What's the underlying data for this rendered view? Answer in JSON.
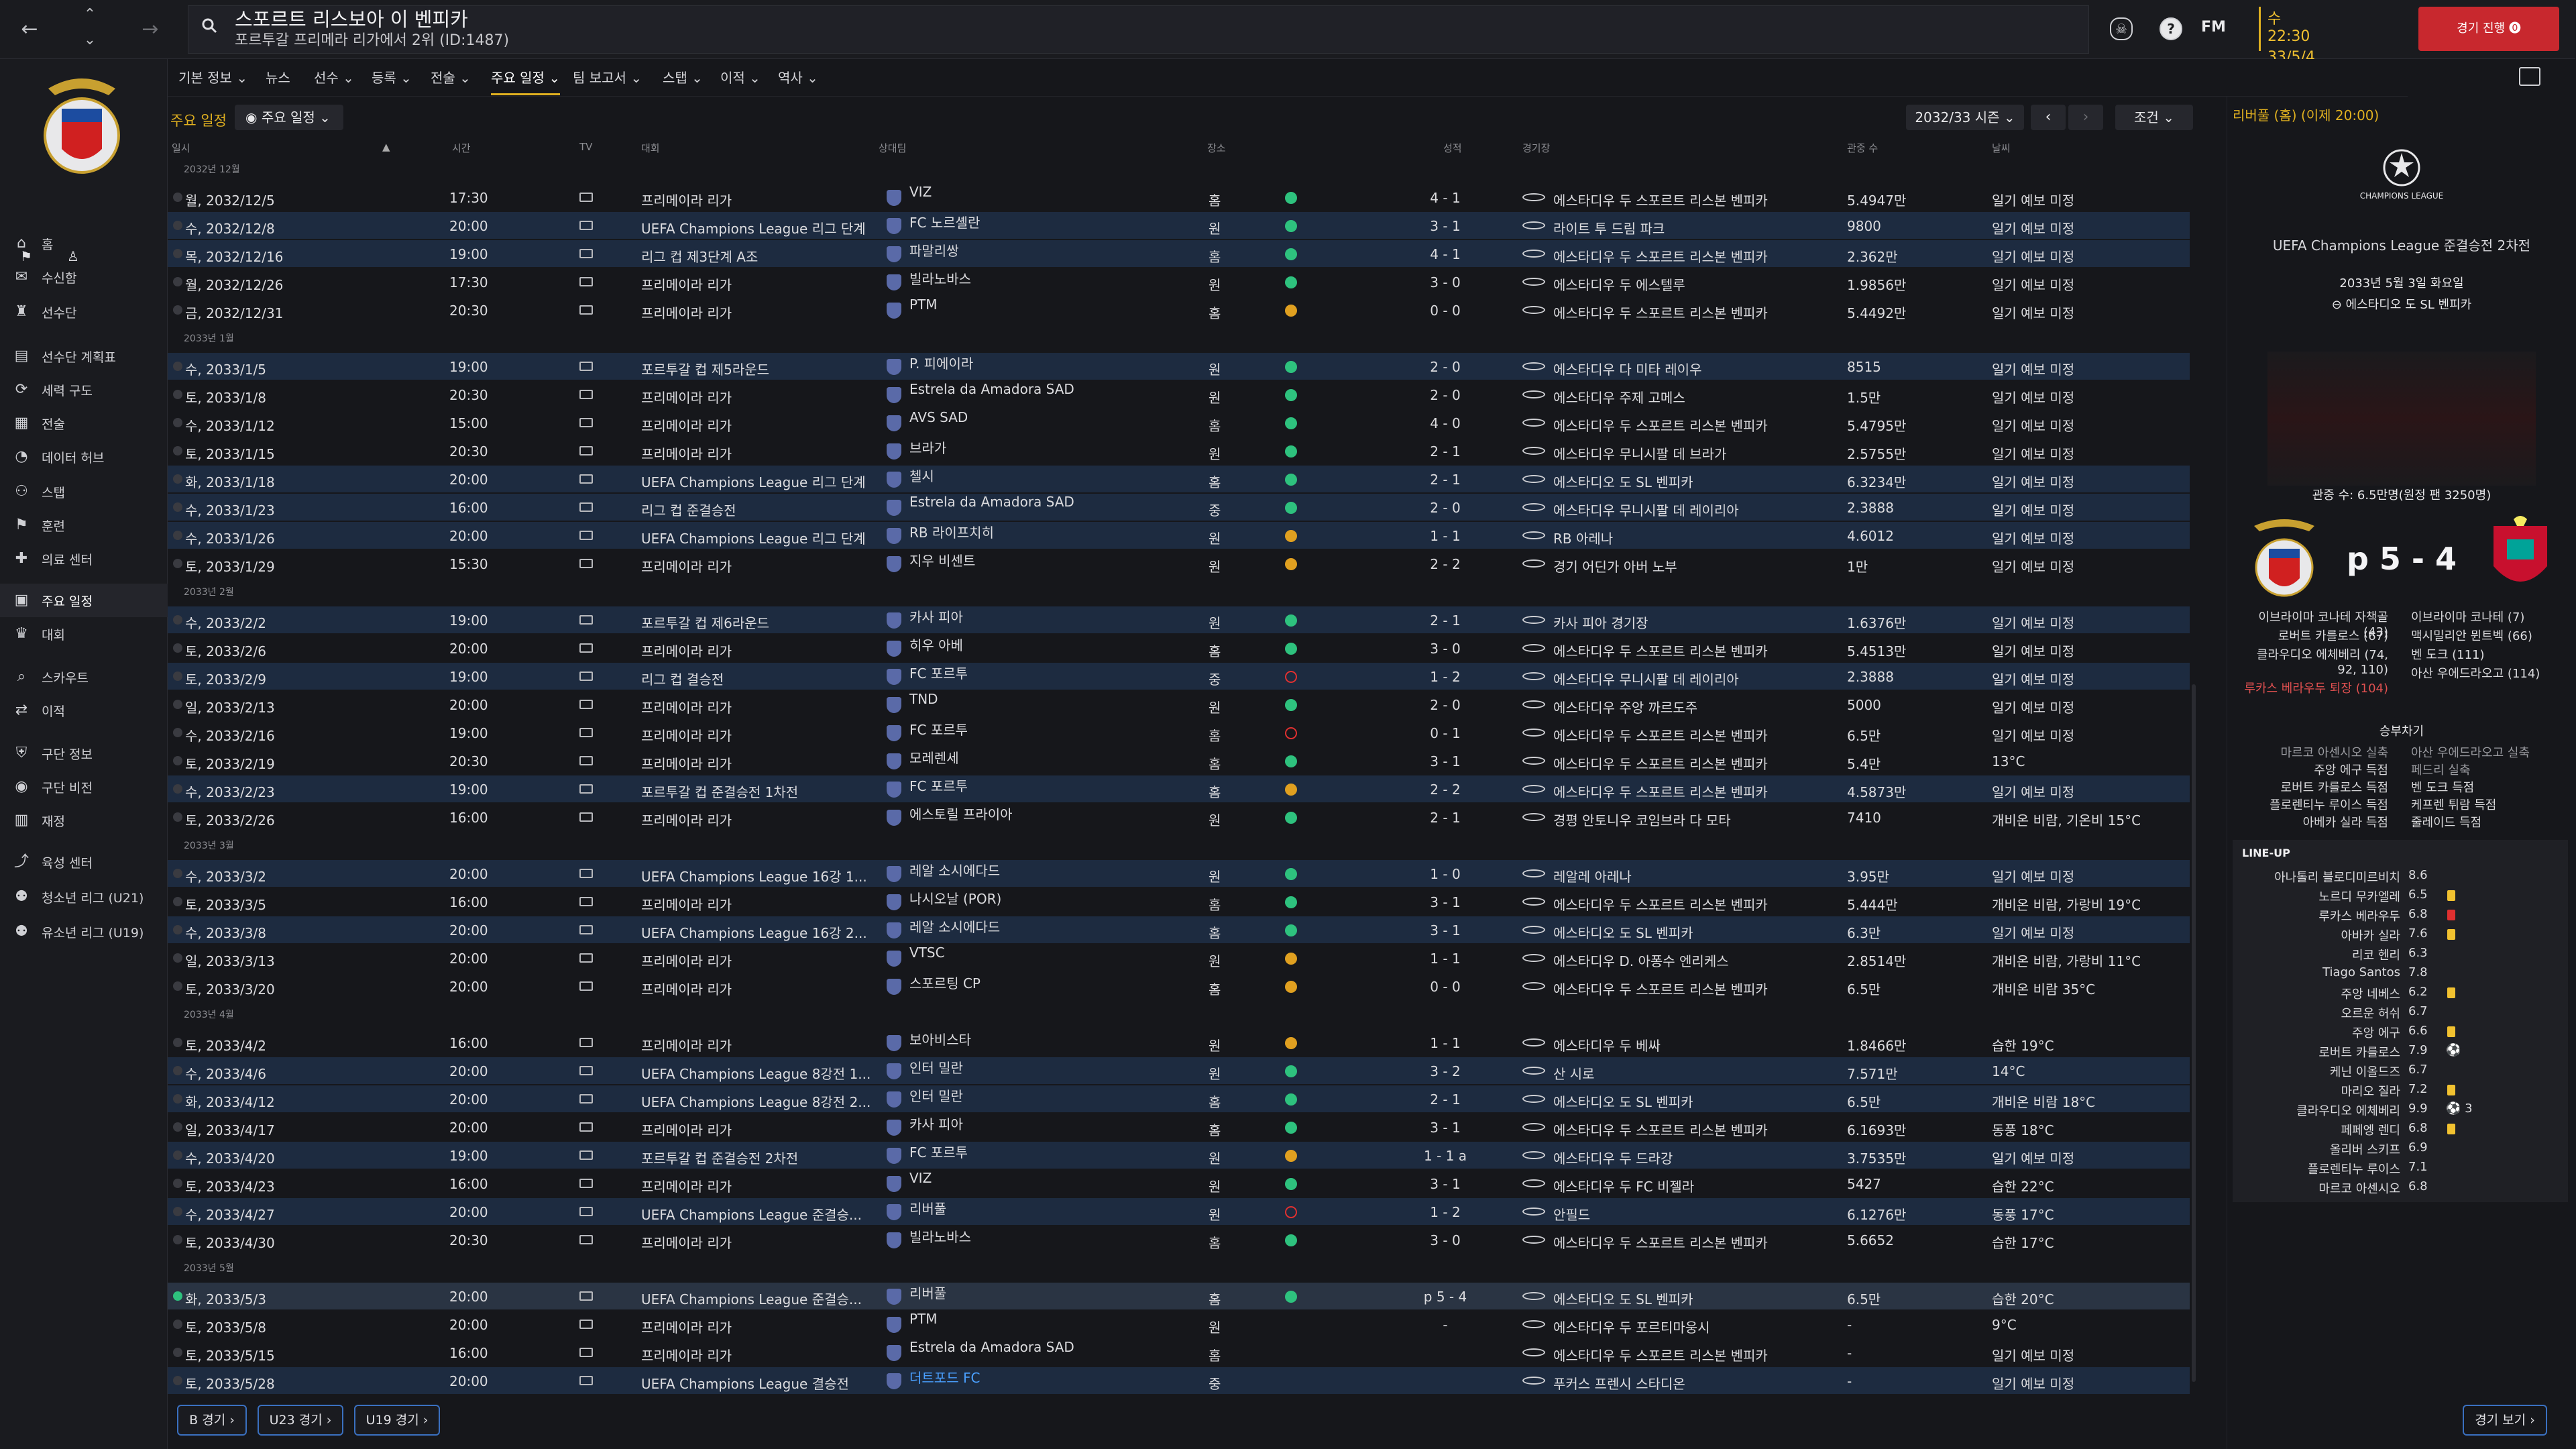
{
  "topbar": {
    "title": "스포르트 리스보아 이 벤피카",
    "subtitle": "포르투갈 프리메라 리가에서 2위 (ID:1487)",
    "fm_logo": "FM",
    "clock_time": "수 22:30",
    "clock_date": "33/5/4",
    "continue_label": "경기 진행"
  },
  "sidebar": {
    "items": [
      {
        "label": "홈",
        "icon": "home-icon"
      },
      {
        "label": "수신함",
        "icon": "inbox-icon"
      },
      {
        "label": "선수단",
        "icon": "shirt-icon"
      },
      {
        "label": "선수단 계획표",
        "icon": "planner-icon"
      },
      {
        "label": "세력 구도",
        "icon": "dynamics-icon"
      },
      {
        "label": "전술",
        "icon": "tactics-icon"
      },
      {
        "label": "데이터 허브",
        "icon": "data-icon"
      },
      {
        "label": "스탭",
        "icon": "staff-icon"
      },
      {
        "label": "훈련",
        "icon": "training-icon"
      },
      {
        "label": "의료 센터",
        "icon": "medical-icon"
      },
      {
        "label": "주요 일정",
        "icon": "calendar-icon"
      },
      {
        "label": "대회",
        "icon": "trophy-icon"
      },
      {
        "label": "스카우트",
        "icon": "scout-icon"
      },
      {
        "label": "이적",
        "icon": "transfer-icon"
      },
      {
        "label": "구단 정보",
        "icon": "club-icon"
      },
      {
        "label": "구단 비전",
        "icon": "vision-icon"
      },
      {
        "label": "재정",
        "icon": "finance-icon"
      },
      {
        "label": "육성 센터",
        "icon": "dev-icon"
      },
      {
        "label": "청소년 리그 (U21)",
        "icon": "u21-icon"
      },
      {
        "label": "유소년 리그 (U19)",
        "icon": "u19-icon"
      }
    ]
  },
  "subnav": [
    "기본 정보",
    "뉴스",
    "선수",
    "등록",
    "전술",
    "주요 일정",
    "팀 보고서",
    "스탭",
    "이적",
    "역사"
  ],
  "main": {
    "label": "주요 일정",
    "dropdown": "주요 일정",
    "season": "2032/33 시즌",
    "prev": "‹",
    "next": "›",
    "filter": "조건",
    "headers": {
      "date": "일시",
      "time": "시간",
      "tv": "TV",
      "comp": "대회",
      "opp": "상대팀",
      "venue": "장소",
      "result": "성적",
      "stadium": "경기장",
      "att": "관중 수",
      "weather": "날씨"
    }
  },
  "fixtures": [
    {
      "month": "2032년 12월"
    },
    {
      "date": "월, 2032/12/5",
      "time": "17:30",
      "comp": "프리메이라 리가",
      "opp": "VIZ",
      "venue": "홈",
      "res": "w",
      "score": "4 - 1",
      "stadium": "에스타디우 두 스포르트 리스본 벤피카",
      "att": "5.4947만",
      "weather": "일기 예보 미정"
    },
    {
      "date": "수, 2032/12/8",
      "time": "20:00",
      "comp": "UEFA Champions League 리그 단계",
      "opp": "FC 노르셸란",
      "venue": "원",
      "res": "w",
      "score": "3 - 1",
      "stadium": "라이트 투 드림 파크",
      "att": "9800",
      "weather": "일기 예보 미정",
      "hl": true
    },
    {
      "date": "목, 2032/12/16",
      "time": "19:00",
      "comp": "리그 컵 제3단계 A조",
      "opp": "파말리쌍",
      "venue": "홈",
      "res": "w",
      "score": "4 - 1",
      "stadium": "에스타디우 두 스포르트 리스본 벤피카",
      "att": "2.362만",
      "weather": "일기 예보 미정",
      "hl": true
    },
    {
      "date": "월, 2032/12/26",
      "time": "17:30",
      "comp": "프리메이라 리가",
      "opp": "빌라노바스",
      "venue": "원",
      "res": "w",
      "score": "3 - 0",
      "stadium": "에스타디우 두 에스텔루",
      "att": "1.9856만",
      "weather": "일기 예보 미정"
    },
    {
      "date": "금, 2032/12/31",
      "time": "20:30",
      "comp": "프리메이라 리가",
      "opp": "PTM",
      "venue": "홈",
      "res": "d",
      "score": "0 - 0",
      "stadium": "에스타디우 두 스포르트 리스본 벤피카",
      "att": "5.4492만",
      "weather": "일기 예보 미정"
    },
    {
      "month": "2033년 1월"
    },
    {
      "date": "수, 2033/1/5",
      "time": "19:00",
      "comp": "포르투갈 컵 제5라운드",
      "opp": "P. 피에이라",
      "venue": "원",
      "res": "w",
      "score": "2 - 0",
      "stadium": "에스타디우 다 미타 레이우",
      "att": "8515",
      "weather": "일기 예보 미정",
      "hl": true
    },
    {
      "date": "토, 2033/1/8",
      "time": "20:30",
      "comp": "프리메이라 리가",
      "opp": "Estrela da Amadora SAD",
      "venue": "원",
      "res": "w",
      "score": "2 - 0",
      "stadium": "에스타디우 주제 고메스",
      "att": "1.5만",
      "weather": "일기 예보 미정"
    },
    {
      "date": "수, 2033/1/12",
      "time": "15:00",
      "comp": "프리메이라 리가",
      "opp": "AVS SAD",
      "venue": "홈",
      "res": "w",
      "score": "4 - 0",
      "stadium": "에스타디우 두 스포르트 리스본 벤피카",
      "att": "5.4795만",
      "weather": "일기 예보 미정"
    },
    {
      "date": "토, 2033/1/15",
      "time": "20:30",
      "comp": "프리메이라 리가",
      "opp": "브라가",
      "venue": "원",
      "res": "w",
      "score": "2 - 1",
      "stadium": "에스타디우 무니시팔 데 브라가",
      "att": "2.5755만",
      "weather": "일기 예보 미정"
    },
    {
      "date": "화, 2033/1/18",
      "time": "20:00",
      "comp": "UEFA Champions League 리그 단계",
      "opp": "첼시",
      "venue": "홈",
      "res": "w",
      "score": "2 - 1",
      "stadium": "에스타디오 도 SL 벤피카",
      "att": "6.3234만",
      "weather": "일기 예보 미정",
      "hl": true
    },
    {
      "date": "수, 2033/1/23",
      "time": "16:00",
      "comp": "리그 컵 준결승전",
      "opp": "Estrela da Amadora SAD",
      "venue": "중",
      "res": "w",
      "score": "2 - 0",
      "stadium": "에스타디우 무니시팔 데 레이리아",
      "att": "2.3888",
      "weather": "일기 예보 미정",
      "hl": true
    },
    {
      "date": "수, 2033/1/26",
      "time": "20:00",
      "comp": "UEFA Champions League 리그 단계",
      "opp": "RB 라이프치히",
      "venue": "원",
      "res": "d",
      "score": "1 - 1",
      "stadium": "RB 아레나",
      "att": "4.6012",
      "weather": "일기 예보 미정",
      "hl": true
    },
    {
      "date": "토, 2033/1/29",
      "time": "15:30",
      "comp": "프리메이라 리가",
      "opp": "지우 비센트",
      "venue": "원",
      "res": "d",
      "score": "2 - 2",
      "stadium": "경기 어딘가 아버 노부",
      "att": "1만",
      "weather": "일기 예보 미정"
    },
    {
      "month": "2033년 2월"
    },
    {
      "date": "수, 2033/2/2",
      "time": "19:00",
      "comp": "포르투갈 컵 제6라운드",
      "opp": "카사 피아",
      "venue": "원",
      "res": "w",
      "score": "2 - 1",
      "stadium": "카사 피아 경기장",
      "att": "1.6376만",
      "weather": "일기 예보 미정",
      "hl": true
    },
    {
      "date": "토, 2033/2/6",
      "time": "20:00",
      "comp": "프리메이라 리가",
      "opp": "히우 아베",
      "venue": "홈",
      "res": "w",
      "score": "3 - 0",
      "stadium": "에스타디우 두 스포르트 리스본 벤피카",
      "att": "5.4513만",
      "weather": "일기 예보 미정"
    },
    {
      "date": "토, 2033/2/9",
      "time": "19:00",
      "comp": "리그 컵 결승전",
      "opp": "FC 포르투",
      "venue": "중",
      "res": "l",
      "score": "1 - 2",
      "stadium": "에스타디우 무니시팔 데 레이리아",
      "att": "2.3888",
      "weather": "일기 예보 미정",
      "hl": true
    },
    {
      "date": "일, 2033/2/13",
      "time": "20:00",
      "comp": "프리메이라 리가",
      "opp": "TND",
      "venue": "원",
      "res": "w",
      "score": "2 - 0",
      "stadium": "에스타디우 주앙 까르도주",
      "att": "5000",
      "weather": "일기 예보 미정"
    },
    {
      "date": "수, 2033/2/16",
      "time": "19:00",
      "comp": "프리메이라 리가",
      "opp": "FC 포르투",
      "venue": "홈",
      "res": "l",
      "score": "0 - 1",
      "stadium": "에스타디우 두 스포르트 리스본 벤피카",
      "att": "6.5만",
      "weather": "일기 예보 미정"
    },
    {
      "date": "토, 2033/2/19",
      "time": "20:30",
      "comp": "프리메이라 리가",
      "opp": "모레렌세",
      "venue": "홈",
      "res": "w",
      "score": "3 - 1",
      "stadium": "에스타디우 두 스포르트 리스본 벤피카",
      "att": "5.4만",
      "weather": "13°C"
    },
    {
      "date": "수, 2033/2/23",
      "time": "19:00",
      "comp": "포르투갈 컵 준결승전 1차전",
      "opp": "FC 포르투",
      "venue": "홈",
      "res": "d",
      "score": "2 - 2",
      "stadium": "에스타디우 두 스포르트 리스본 벤피카",
      "att": "4.5873만",
      "weather": "일기 예보 미정",
      "hl": true
    },
    {
      "date": "토, 2033/2/26",
      "time": "16:00",
      "comp": "프리메이라 리가",
      "opp": "에스토릴 프라이아",
      "venue": "원",
      "res": "w",
      "score": "2 - 1",
      "stadium": "경평 안토니우 코임브라 다 모타",
      "att": "7410",
      "weather": "개비온 비람, 기온비 15°C"
    },
    {
      "month": "2033년 3월"
    },
    {
      "date": "수, 2033/3/2",
      "time": "20:00",
      "comp": "UEFA Champions League 16강 1...",
      "opp": "레알 소시에다드",
      "venue": "원",
      "res": "w",
      "score": "1 - 0",
      "stadium": "레알레 아레나",
      "att": "3.95만",
      "weather": "일기 예보 미정",
      "hl": true
    },
    {
      "date": "토, 2033/3/5",
      "time": "16:00",
      "comp": "프리메이라 리가",
      "opp": "나시오날 (POR)",
      "venue": "홈",
      "res": "w",
      "score": "3 - 1",
      "stadium": "에스타디우 두 스포르트 리스본 벤피카",
      "att": "5.444만",
      "weather": "개비온 비람, 가랑비 19°C"
    },
    {
      "date": "수, 2033/3/8",
      "time": "20:00",
      "comp": "UEFA Champions League 16강 2...",
      "opp": "레알 소시에다드",
      "venue": "홈",
      "res": "w",
      "score": "3 - 1",
      "stadium": "에스타디오 도 SL 벤피카",
      "att": "6.3만",
      "weather": "일기 예보 미정",
      "hl": true
    },
    {
      "date": "일, 2033/3/13",
      "time": "20:00",
      "comp": "프리메이라 리가",
      "opp": "VTSC",
      "venue": "원",
      "res": "d",
      "score": "1 - 1",
      "stadium": "에스타디우 D. 아퐁수 엔리케스",
      "att": "2.8514만",
      "weather": "개비온 비람, 가랑비 11°C"
    },
    {
      "date": "토, 2033/3/20",
      "time": "20:00",
      "comp": "프리메이라 리가",
      "opp": "스포르팅 CP",
      "venue": "홈",
      "res": "d",
      "score": "0 - 0",
      "stadium": "에스타디우 두 스포르트 리스본 벤피카",
      "att": "6.5만",
      "weather": "개비온 비람 35°C"
    },
    {
      "month": "2033년 4월"
    },
    {
      "date": "토, 2033/4/2",
      "time": "16:00",
      "comp": "프리메이라 리가",
      "opp": "보아비스타",
      "venue": "원",
      "res": "d",
      "score": "1 - 1",
      "stadium": "에스타디우 두 베싸",
      "att": "1.8466만",
      "weather": "습한 19°C"
    },
    {
      "date": "수, 2033/4/6",
      "time": "20:00",
      "comp": "UEFA Champions League 8강전 1...",
      "opp": "인터 밀란",
      "venue": "원",
      "res": "w",
      "score": "3 - 2",
      "stadium": "산 시로",
      "att": "7.571만",
      "weather": "14°C",
      "hl": true
    },
    {
      "date": "화, 2033/4/12",
      "time": "20:00",
      "comp": "UEFA Champions League 8강전 2...",
      "opp": "인터 밀란",
      "venue": "홈",
      "res": "w",
      "score": "2 - 1",
      "stadium": "에스타디오 도 SL 벤피카",
      "att": "6.5만",
      "weather": "개비온 비람 18°C",
      "hl": true
    },
    {
      "date": "일, 2033/4/17",
      "time": "20:00",
      "comp": "프리메이라 리가",
      "opp": "카사 피아",
      "venue": "홈",
      "res": "w",
      "score": "3 - 1",
      "stadium": "에스타디우 두 스포르트 리스본 벤피카",
      "att": "6.1693만",
      "weather": "동풍 18°C"
    },
    {
      "date": "수, 2033/4/20",
      "time": "19:00",
      "comp": "포르투갈 컵 준결승전 2차전",
      "opp": "FC 포르투",
      "venue": "원",
      "res": "d",
      "score": "1 - 1 a",
      "stadium": "에스타디우 두 드라강",
      "att": "3.7535만",
      "weather": "일기 예보 미정",
      "hl": true
    },
    {
      "date": "토, 2033/4/23",
      "time": "16:00",
      "comp": "프리메이라 리가",
      "opp": "VIZ",
      "venue": "원",
      "res": "w",
      "score": "3 - 1",
      "stadium": "에스타디우 두 FC 비젤라",
      "att": "5427",
      "weather": "습한 22°C"
    },
    {
      "date": "수, 2033/4/27",
      "time": "20:00",
      "comp": "UEFA Champions League 준결승...",
      "opp": "리버풀",
      "venue": "원",
      "res": "l",
      "score": "1 - 2",
      "stadium": "안필드",
      "att": "6.1276만",
      "weather": "동풍 17°C",
      "hl": true
    },
    {
      "date": "토, 2033/4/30",
      "time": "20:30",
      "comp": "프리메이라 리가",
      "opp": "빌라노바스",
      "venue": "홈",
      "res": "w",
      "score": "3 - 0",
      "stadium": "에스타디우 두 스포르트 리스본 벤피카",
      "att": "5.6652",
      "weather": "습한 17°C"
    },
    {
      "month": "2033년 5월"
    },
    {
      "date": "화, 2033/5/3",
      "time": "20:00",
      "comp": "UEFA Champions League 준결승...",
      "opp": "리버풀",
      "venue": "홈",
      "res": "w",
      "score": "p 5 - 4",
      "stadium": "에스타디오 도 SL 벤피카",
      "att": "6.5만",
      "weather": "습한 20°C",
      "sel": true
    },
    {
      "date": "토, 2033/5/8",
      "time": "20:00",
      "comp": "프리메이라 리가",
      "opp": "PTM",
      "venue": "원",
      "res": "",
      "score": "-",
      "stadium": "에스타디우 두 포르티마웅시",
      "att": "-",
      "weather": "9°C"
    },
    {
      "date": "토, 2033/5/15",
      "time": "16:00",
      "comp": "프리메이라 리가",
      "opp": "Estrela da Amadora SAD",
      "venue": "홈",
      "res": "",
      "score": "",
      "stadium": "에스타디우 두 스포르트 리스본 벤피카",
      "att": "-",
      "weather": "일기 예보 미정"
    },
    {
      "date": "토, 2033/5/28",
      "time": "20:00",
      "comp": "UEFA Champions League 결승전",
      "opp": "더트포드 FC",
      "venue": "중",
      "res": "",
      "score": "",
      "stadium": "푸커스 프렌시 스타디온",
      "att": "-",
      "weather": "일기 예보 미정",
      "hl": true
    }
  ],
  "bottom_buttons": [
    "B 경기",
    "U23 경기",
    "U19 경기"
  ],
  "right_panel": {
    "header": "리버풀 (홈) (이제 20:00)",
    "comp_logo_text": "CHAMPIONS LEAGUE",
    "comp": "UEFA Champions League 준결승전 2차전",
    "date": "2033년 5월 3일 화요일",
    "venue": "에스타디오 도 SL 벤피카",
    "attendance": "관중 수: 6.5만명(원정 팬 3250명)",
    "score": "p 5 - 4",
    "home_scorers": [
      "이브라이마 코나테 자책골 (43)",
      "로버트 카를로스 (67)",
      "클라우디오 에체베리 (74, 92, 110)"
    ],
    "home_red": "루카스 베라우두 퇴장 (104)",
    "away_scorers": [
      "이브라이마 코나테 (7)",
      "맥시밀리안 뮌트벡 (66)",
      "벤 도크 (111)",
      "아산 우에드라오고 (114)"
    ],
    "pens_title": "승부차기",
    "pens_home": [
      {
        "text": "마르코 아센시오 실축",
        "miss": true
      },
      {
        "text": "주앙 에구 득점",
        "miss": false
      },
      {
        "text": "로버트 카를로스 득점",
        "miss": false
      },
      {
        "text": "플로렌티누 루이스 득점",
        "miss": false
      },
      {
        "text": "아베카 실라 득점",
        "miss": false
      }
    ],
    "pens_away": [
      {
        "text": "아산 우에드라오고 실축",
        "miss": true
      },
      {
        "text": "페드리 실축",
        "miss": true
      },
      {
        "text": "벤 도크 득점",
        "miss": false
      },
      {
        "text": "케프렌 튀람 득점",
        "miss": false
      },
      {
        "text": "줄레이드 득점",
        "miss": false
      }
    ],
    "lineup_title": "LINE-UP",
    "lineup": [
      {
        "name": "아나톨리 블로디미르비치",
        "rating": "8.6",
        "card": ""
      },
      {
        "name": "노르디 무카엘레",
        "rating": "6.5",
        "card": "yellow"
      },
      {
        "name": "루카스 베라우두",
        "rating": "6.8",
        "card": "red"
      },
      {
        "name": "아바카 실라",
        "rating": "7.6",
        "card": "yellow"
      },
      {
        "name": "리코 헨리",
        "rating": "6.3",
        "card": ""
      },
      {
        "name": "Tiago Santos",
        "rating": "7.8",
        "card": ""
      },
      {
        "name": "주앙 네베스",
        "rating": "6.2",
        "card": "yellow"
      },
      {
        "name": "오르운 허쉬",
        "rating": "6.7",
        "card": ""
      },
      {
        "name": "주앙 에구",
        "rating": "6.6",
        "card": "yellow"
      },
      {
        "name": "로버트 카를로스",
        "rating": "7.9",
        "card": "ball"
      },
      {
        "name": "케닌 이올드즈",
        "rating": "6.7",
        "card": ""
      },
      {
        "name": "마리오 질라",
        "rating": "7.2",
        "card": "yellow"
      },
      {
        "name": "클라우디오 에체베리",
        "rating": "9.9",
        "card": "ball3"
      },
      {
        "name": "페페엥 렌디",
        "rating": "6.8",
        "card": "yellow"
      },
      {
        "name": "올리버 스키프",
        "rating": "6.9",
        "card": ""
      },
      {
        "name": "플로렌티누 루이스",
        "rating": "7.1",
        "card": ""
      },
      {
        "name": "마르코 아센시오",
        "rating": "6.8",
        "card": ""
      }
    ],
    "full_button": "경기 보기"
  }
}
